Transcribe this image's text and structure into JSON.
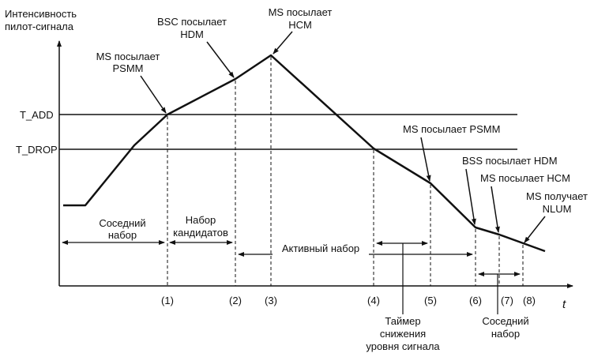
{
  "axis": {
    "y_title": [
      "Интенсивность",
      "пилот-сигнала"
    ],
    "x_label": "t"
  },
  "thresholds": {
    "add": "T_ADD",
    "drop": "T_DROP"
  },
  "events": [
    {
      "id": "e1",
      "lines": [
        "MS посылает",
        "PSMM"
      ]
    },
    {
      "id": "e2",
      "lines": [
        "BSC посылает",
        "HDM"
      ]
    },
    {
      "id": "e3",
      "lines": [
        "MS посылает",
        "HCM"
      ]
    },
    {
      "id": "e4",
      "lines": [
        "MS посылает PSMM"
      ]
    },
    {
      "id": "e5",
      "lines": [
        "BSS посылает HDM"
      ]
    },
    {
      "id": "e6",
      "lines": [
        "MS посылает HCM"
      ]
    },
    {
      "id": "e7",
      "lines": [
        "MS получает",
        "NLUM"
      ]
    }
  ],
  "time_markers": [
    "(1)",
    "(2)",
    "(3)",
    "(4)",
    "(5)",
    "(6)",
    "(7)",
    "(8)"
  ],
  "sets": {
    "neighbor": [
      "Соседний",
      "набор"
    ],
    "candidate": [
      "Набор",
      "кандидатов"
    ],
    "active": "Активный набор",
    "neighbor_after": [
      "Соседний",
      "набор"
    ]
  },
  "timer": [
    "Таймер",
    "снижения",
    "уровня сигнала"
  ]
}
